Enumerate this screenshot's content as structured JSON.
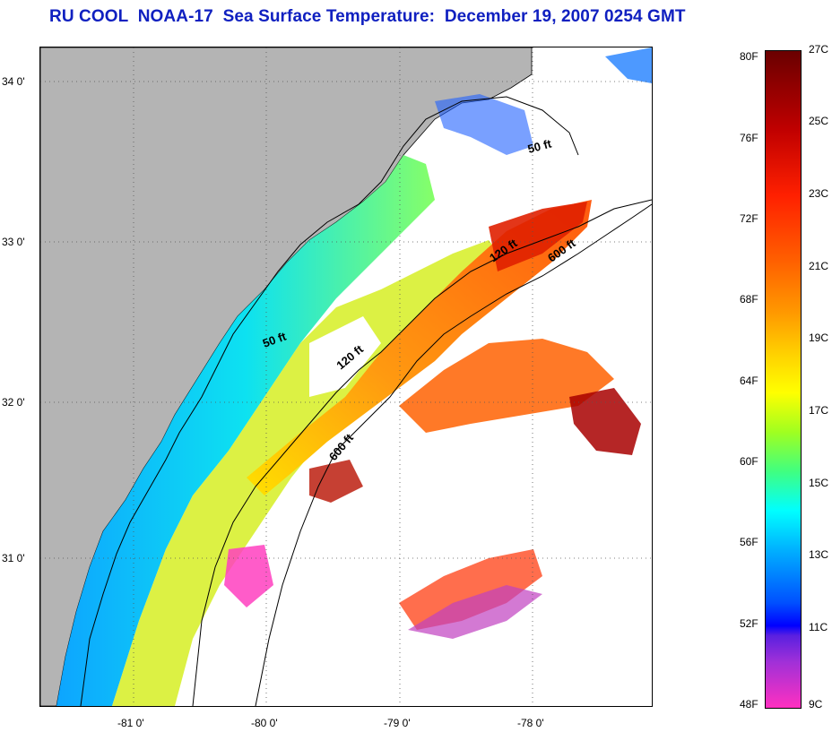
{
  "title": "RU COOL  NOAA-17  Sea Surface Temperature:  December 19, 2007 0254 GMT",
  "map": {
    "latitude_labels": [
      "34 0'",
      "33 0'",
      "32 0'",
      "31 0'"
    ],
    "longitude_labels": [
      "-81 0'",
      "-80 0'",
      "-79 0'",
      "-78 0'"
    ],
    "contour_labels": [
      "50 ft",
      "50 ft",
      "120 ft",
      "120 ft",
      "600 ft",
      "600 ft"
    ],
    "land_color": "#b4b4b4",
    "cloud_color": "#ffffff"
  },
  "colorbar": {
    "fahrenheit_labels": [
      "80F",
      "76F",
      "72F",
      "68F",
      "64F",
      "60F",
      "56F",
      "52F",
      "48F"
    ],
    "celsius_labels": [
      "27C",
      "25C",
      "23C",
      "21C",
      "19C",
      "17C",
      "15C",
      "13C",
      "11C",
      "9C"
    ]
  }
}
